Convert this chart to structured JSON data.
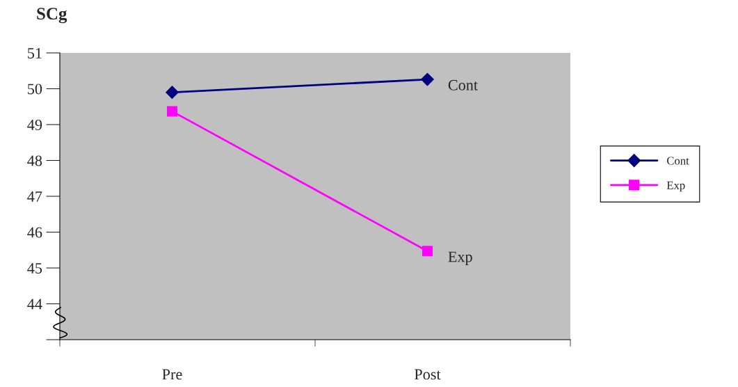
{
  "chart_data": {
    "type": "line",
    "title": "SCg",
    "categories": [
      "Pre",
      "Post"
    ],
    "series": [
      {
        "name": "Cont",
        "color": "#000080",
        "values": [
          49.9,
          50.26
        ],
        "marker": "diamond"
      },
      {
        "name": "Exp",
        "color": "#ff00ff",
        "values": [
          49.37,
          45.47
        ],
        "marker": "square"
      }
    ],
    "ylim": [
      43,
      51
    ],
    "yticks": [
      {
        "value": 43,
        "label": null
      },
      44,
      45,
      46,
      47,
      48,
      49,
      50,
      51
    ],
    "grid": false,
    "legend": "right",
    "line_style": "solid"
  }
}
